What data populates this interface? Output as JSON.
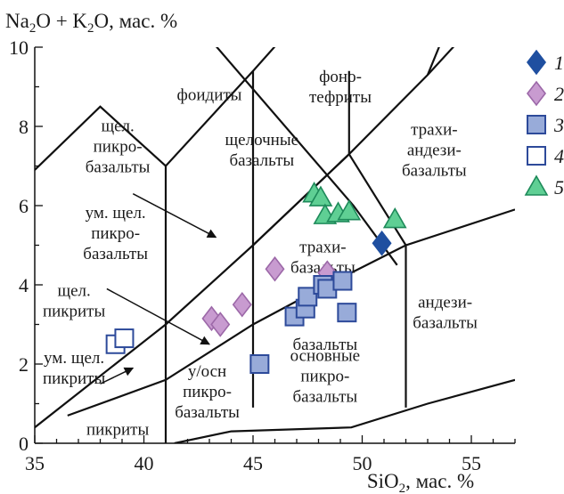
{
  "chart_data": {
    "type": "scatter",
    "title": "",
    "ylabel": {
      "main": "Na",
      "sub1": "2",
      "mid": "O + K",
      "sub2": "2",
      "tail": "O, мас. %"
    },
    "xlabel": {
      "main": "SiO",
      "sub": "2",
      "tail": ", мас. %"
    },
    "xlim": [
      35,
      57
    ],
    "ylim": [
      0,
      10
    ],
    "xticks": [
      "35",
      "40",
      "45",
      "50",
      "55"
    ],
    "yticks": [
      "0",
      "2",
      "4",
      "6",
      "8",
      "10"
    ],
    "grid": false,
    "legend_position": "right",
    "boundaries": [
      [
        [
          35,
          0.4
        ],
        [
          41,
          3
        ],
        [
          45,
          5
        ],
        [
          49.4,
          7.3
        ],
        [
          53,
          9.3
        ],
        [
          57,
          11.7
        ]
      ],
      [
        [
          35,
          6.9
        ],
        [
          38,
          8.5
        ],
        [
          41,
          7
        ],
        [
          45,
          9.4
        ],
        [
          48.4,
          11.5
        ]
      ],
      [
        [
          41,
          0
        ],
        [
          41,
          7
        ]
      ],
      [
        [
          45,
          0.9
        ],
        [
          45,
          9.4
        ]
      ],
      [
        [
          45,
          5
        ],
        [
          49.4,
          7.3
        ],
        [
          52,
          5
        ],
        [
          57,
          5.9
        ]
      ],
      [
        [
          52,
          0.9
        ],
        [
          52,
          5
        ]
      ],
      [
        [
          49.4,
          7.3
        ],
        [
          49.4,
          9.4
        ]
      ],
      [
        [
          53,
          9.3
        ],
        [
          55,
          12
        ]
      ],
      [
        [
          36.5,
          0.7
        ],
        [
          41,
          1.6
        ],
        [
          45,
          3
        ],
        [
          48.4,
          4
        ],
        [
          52,
          5
        ]
      ],
      [
        [
          41.4,
          0
        ],
        [
          44,
          0.3
        ],
        [
          49.5,
          0.4
        ],
        [
          53,
          1
        ],
        [
          57,
          1.6
        ]
      ],
      [
        [
          41,
          11.5
        ],
        [
          49.6,
          6
        ],
        [
          51.6,
          4.5
        ]
      ]
    ],
    "fields": [
      {
        "label": [
          "фоидиты"
        ],
        "x": 43,
        "y": 8.8
      },
      {
        "label": [
          "фоно-",
          "тефриты"
        ],
        "x": 49,
        "y": 9.0
      },
      {
        "label": [
          "щел.",
          "пикро-",
          "базальты"
        ],
        "x": 38.8,
        "y": 7.5
      },
      {
        "label": [
          "щелочные",
          "базальты"
        ],
        "x": 45.4,
        "y": 7.4
      },
      {
        "label": [
          "трахи-",
          "андези-",
          "базальты"
        ],
        "x": 53.3,
        "y": 7.4
      },
      {
        "label": [
          "ум. щел.",
          "пикро-",
          "базальты"
        ],
        "x": 38.7,
        "y": 5.3
      },
      {
        "label": [
          "трахи-",
          "базальты"
        ],
        "x": 48.2,
        "y": 4.7
      },
      {
        "label": [
          "щел.",
          "пикриты"
        ],
        "x": 36.8,
        "y": 3.6
      },
      {
        "label": [
          "андези-",
          "базальты"
        ],
        "x": 53.8,
        "y": 3.3
      },
      {
        "label": [
          "базальты"
        ],
        "x": 48.3,
        "y": 2.5
      },
      {
        "label": [
          "ум. щел.",
          "пикриты"
        ],
        "x": 36.8,
        "y": 1.9
      },
      {
        "label": [
          "основные",
          "пикро-",
          "базальты"
        ],
        "x": 48.3,
        "y": 1.7
      },
      {
        "label": [
          "у/осн",
          "пикро-",
          "базальты"
        ],
        "x": 42.9,
        "y": 1.3
      },
      {
        "label": [
          "пикриты"
        ],
        "x": 38.8,
        "y": 0.35
      }
    ],
    "arrows": [
      {
        "from": [
          39.5,
          6.3
        ],
        "to": [
          43.3,
          5.2
        ]
      },
      {
        "from": [
          38.3,
          3.9
        ],
        "to": [
          43.0,
          2.5
        ]
      },
      {
        "from": [
          38.0,
          1.5
        ],
        "to": [
          39.5,
          1.9
        ]
      }
    ],
    "series": [
      {
        "name": "1",
        "marker": "diamond",
        "color": "#1f4fa0",
        "fill": "#1f4fa0",
        "points": [
          [
            50.9,
            5.05
          ]
        ]
      },
      {
        "name": "2",
        "marker": "diamond",
        "color": "#9c68a8",
        "fill": "#c89bd0",
        "points": [
          [
            43.1,
            3.15
          ],
          [
            43.5,
            3.0
          ],
          [
            44.5,
            3.5
          ],
          [
            46.0,
            4.4
          ],
          [
            48.4,
            4.3
          ]
        ]
      },
      {
        "name": "3",
        "marker": "square",
        "color": "#2d4a9a",
        "fill": "#98abd9",
        "points": [
          [
            45.3,
            2.0
          ],
          [
            46.9,
            3.2
          ],
          [
            47.4,
            3.4
          ],
          [
            47.5,
            3.7
          ],
          [
            48.2,
            4.0
          ],
          [
            48.4,
            3.9
          ],
          [
            49.1,
            4.1
          ],
          [
            49.3,
            3.3
          ]
        ]
      },
      {
        "name": "4",
        "marker": "square",
        "color": "#2d4a9a",
        "fill": "#ffffff",
        "points": [
          [
            38.7,
            2.5
          ],
          [
            39.1,
            2.65
          ]
        ]
      },
      {
        "name": "5",
        "marker": "triangle",
        "color": "#1e8a5a",
        "fill": "#5fcf94",
        "points": [
          [
            47.8,
            6.3
          ],
          [
            48.1,
            6.2
          ],
          [
            48.3,
            5.75
          ],
          [
            48.9,
            5.8
          ],
          [
            49.4,
            5.85
          ],
          [
            51.5,
            5.65
          ]
        ]
      }
    ]
  }
}
